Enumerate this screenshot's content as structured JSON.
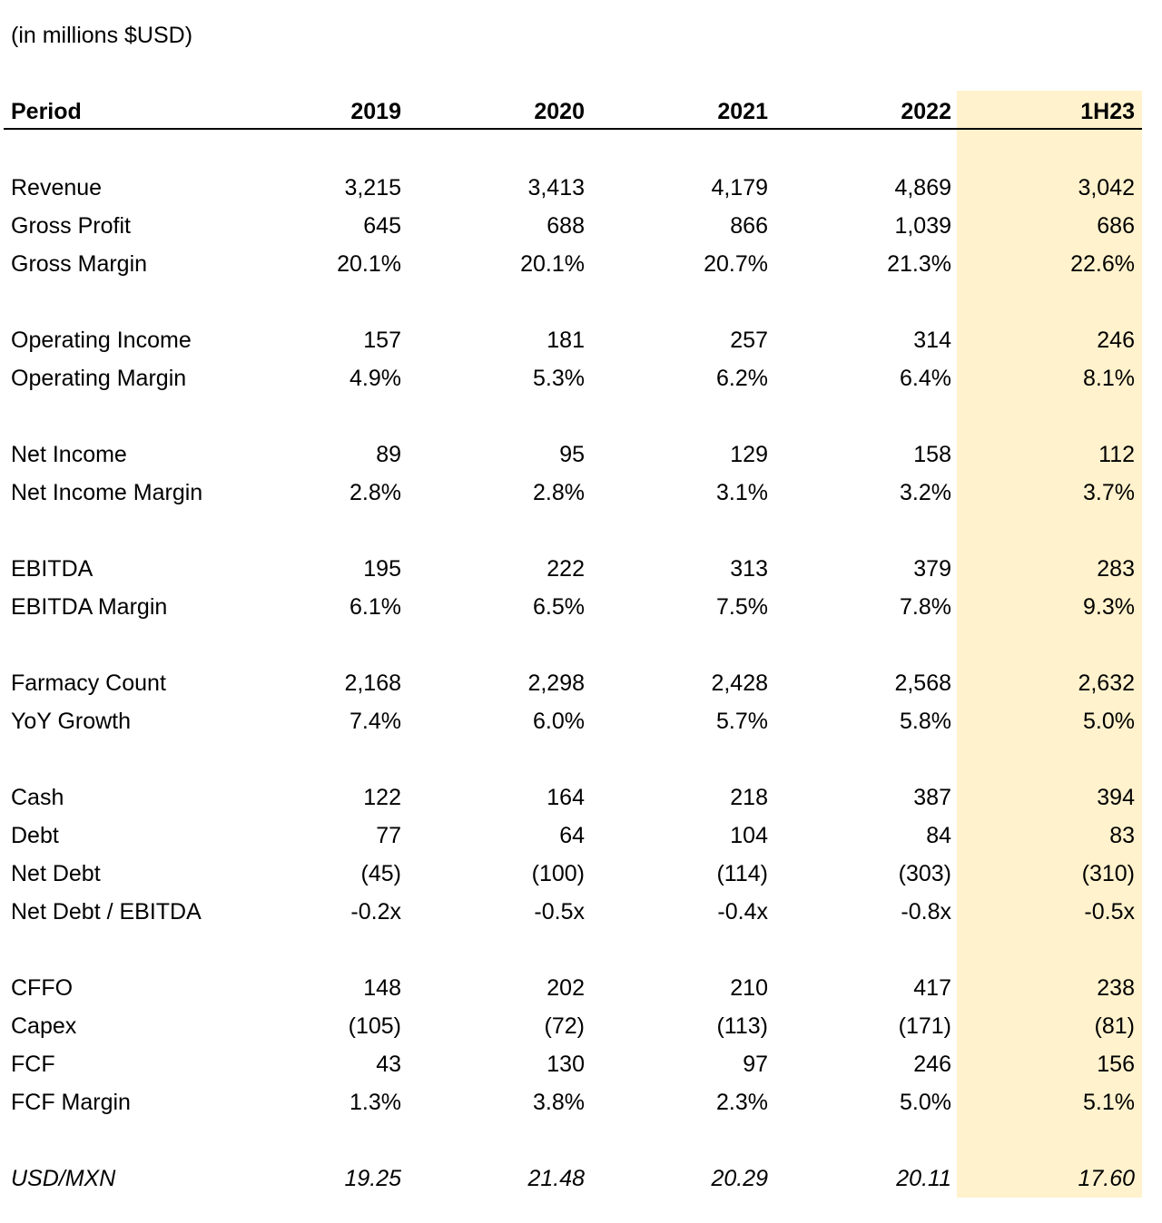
{
  "unit_note": "(in millions $USD)",
  "header": {
    "label": "Period",
    "periods": [
      "2019",
      "2020",
      "2021",
      "2022",
      "1H23"
    ]
  },
  "highlight_color": "#fff2cc",
  "rows": [
    {
      "label": "Revenue",
      "values": [
        "3,215",
        "3,413",
        "4,179",
        "4,869",
        "3,042"
      ]
    },
    {
      "label": "Gross Profit",
      "values": [
        "645",
        "688",
        "866",
        "1,039",
        "686"
      ]
    },
    {
      "label": "Gross Margin",
      "values": [
        "20.1%",
        "20.1%",
        "20.7%",
        "21.3%",
        "22.6%"
      ]
    },
    {
      "label": "Operating Income",
      "values": [
        "157",
        "181",
        "257",
        "314",
        "246"
      ]
    },
    {
      "label": "Operating Margin",
      "values": [
        "4.9%",
        "5.3%",
        "6.2%",
        "6.4%",
        "8.1%"
      ]
    },
    {
      "label": "Net Income",
      "values": [
        "89",
        "95",
        "129",
        "158",
        "112"
      ]
    },
    {
      "label": "Net Income Margin",
      "values": [
        "2.8%",
        "2.8%",
        "3.1%",
        "3.2%",
        "3.7%"
      ]
    },
    {
      "label": "EBITDA",
      "values": [
        "195",
        "222",
        "313",
        "379",
        "283"
      ]
    },
    {
      "label": "EBITDA Margin",
      "values": [
        "6.1%",
        "6.5%",
        "7.5%",
        "7.8%",
        "9.3%"
      ]
    },
    {
      "label": "Farmacy Count",
      "values": [
        "2,168",
        "2,298",
        "2,428",
        "2,568",
        "2,632"
      ]
    },
    {
      "label": "YoY Growth",
      "values": [
        "7.4%",
        "6.0%",
        "5.7%",
        "5.8%",
        "5.0%"
      ]
    },
    {
      "label": "Cash",
      "values": [
        "122",
        "164",
        "218",
        "387",
        "394"
      ]
    },
    {
      "label": "Debt",
      "values": [
        "77",
        "64",
        "104",
        "84",
        "83"
      ]
    },
    {
      "label": "Net Debt",
      "values": [
        "(45)",
        "(100)",
        "(114)",
        "(303)",
        "(310)"
      ]
    },
    {
      "label": "Net Debt / EBITDA",
      "values": [
        "-0.2x",
        "-0.5x",
        "-0.4x",
        "-0.8x",
        "-0.5x"
      ]
    },
    {
      "label": "CFFO",
      "values": [
        "148",
        "202",
        "210",
        "417",
        "238"
      ]
    },
    {
      "label": "Capex",
      "values": [
        "(105)",
        "(72)",
        "(113)",
        "(171)",
        "(81)"
      ]
    },
    {
      "label": "FCF",
      "values": [
        "43",
        "130",
        "97",
        "246",
        "156"
      ]
    },
    {
      "label": "FCF Margin",
      "values": [
        "1.3%",
        "3.8%",
        "2.3%",
        "5.0%",
        "5.1%"
      ]
    },
    {
      "label": "USD/MXN",
      "values": [
        "19.25",
        "21.48",
        "20.29",
        "20.11",
        "17.60"
      ]
    }
  ]
}
